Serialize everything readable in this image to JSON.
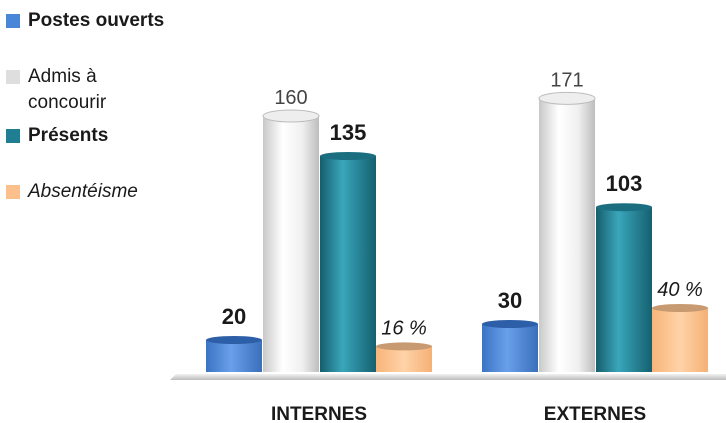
{
  "chart_data": {
    "type": "bar",
    "categories": [
      "INTERNES",
      "EXTERNES"
    ],
    "series": [
      {
        "name": "Postes ouverts",
        "values": [
          20,
          30
        ],
        "labels": [
          "20",
          "30"
        ],
        "color": "#4a86d8",
        "label_style": "bold"
      },
      {
        "name": "Admis à concourir",
        "values": [
          160,
          171
        ],
        "labels": [
          "160",
          "171"
        ],
        "color": "#e6e6e6",
        "label_style": "normal"
      },
      {
        "name": "Présents",
        "values": [
          135,
          103
        ],
        "labels": [
          "135",
          "103"
        ],
        "color": "#1f7f92",
        "label_style": "bold"
      },
      {
        "name": "Absentéisme",
        "values": [
          16,
          40
        ],
        "labels": [
          "16 %",
          "40 %"
        ],
        "color": "#fcc08c",
        "label_style": "italic"
      }
    ],
    "legend_position": "left",
    "grid": false
  }
}
